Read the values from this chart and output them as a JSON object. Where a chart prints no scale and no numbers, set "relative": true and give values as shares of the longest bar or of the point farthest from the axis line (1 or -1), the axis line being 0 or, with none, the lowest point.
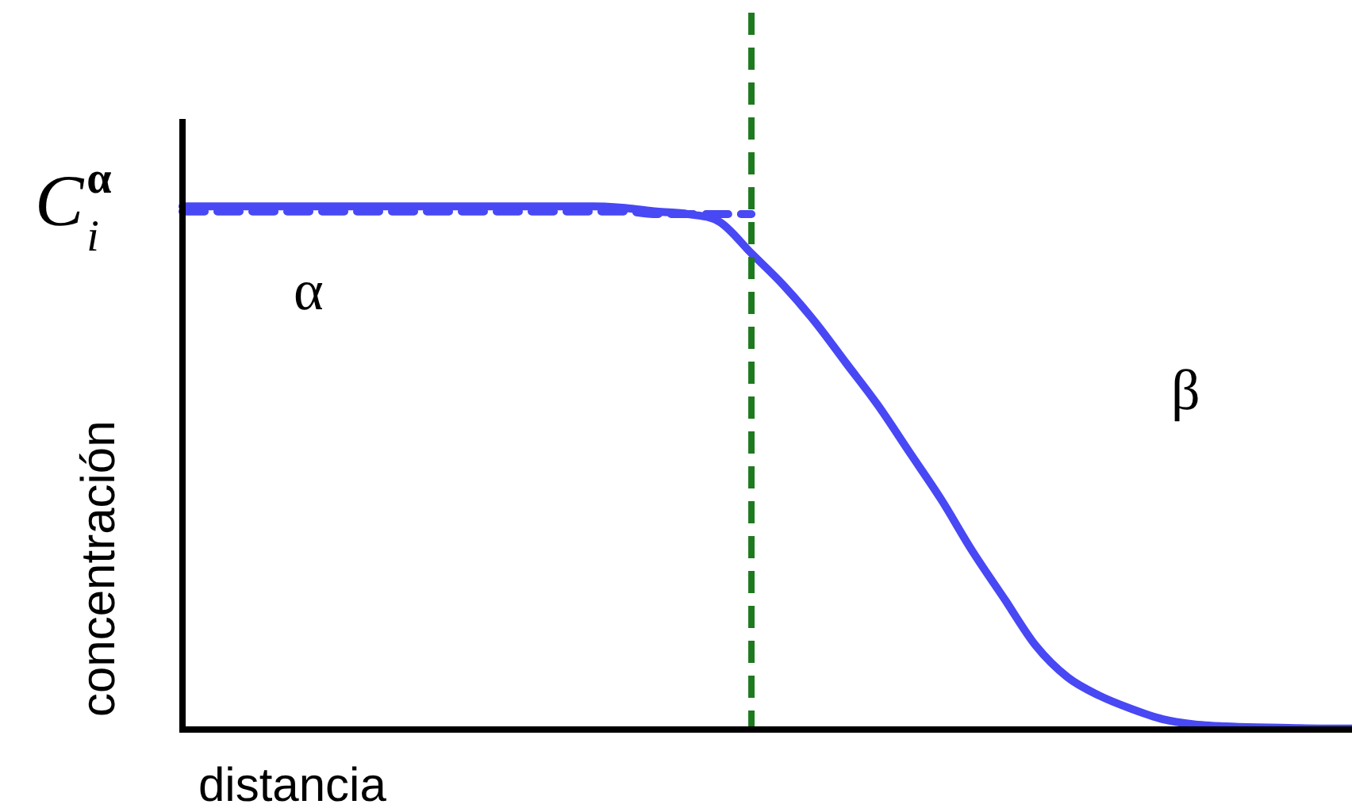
{
  "chart_data": {
    "type": "line",
    "relative": true,
    "xlabel": "distancia",
    "ylabel": "concentración",
    "marker": "none",
    "categories": [
      null,
      null,
      null,
      null,
      null,
      null,
      null,
      null,
      null,
      null,
      null,
      null,
      null,
      null,
      null,
      null,
      null,
      null,
      null,
      null,
      null,
      null,
      null,
      null,
      null,
      null,
      null,
      null,
      null,
      null,
      null,
      null,
      null,
      null,
      null,
      null,
      null,
      null
    ],
    "series": [
      {
        "color": "#4848f4",
        "line_style": "solid",
        "values": [
          1,
          1,
          1,
          1,
          1,
          1,
          1,
          1,
          1,
          1,
          1,
          1,
          1,
          1,
          0.997,
          0.99,
          0.985,
          0.97,
          0.91,
          0.85,
          0.78,
          0.7,
          0.62,
          0.53,
          0.44,
          0.34,
          0.25,
          0.16,
          0.1,
          0.065,
          0.04,
          0.02,
          0.01,
          0.006,
          0.004,
          0.003,
          0.002,
          0.002
        ]
      },
      {
        "color": "#4848f4",
        "line_style": "dashed",
        "values": [
          0.99,
          0.99,
          0.99,
          0.99,
          0.99,
          0.99,
          0.99,
          0.99,
          0.99,
          0.99,
          0.99,
          0.99,
          0.99,
          0.99,
          0.99,
          0.985,
          0.985,
          0.985,
          0.985,
          null,
          null,
          null,
          null,
          null,
          null,
          null,
          null,
          null,
          null,
          null,
          null,
          null,
          null,
          null,
          null,
          null,
          null,
          null
        ]
      }
    ],
    "annotations": [
      "C$_{i}$$^{α}$",
      "α",
      "β"
    ]
  }
}
